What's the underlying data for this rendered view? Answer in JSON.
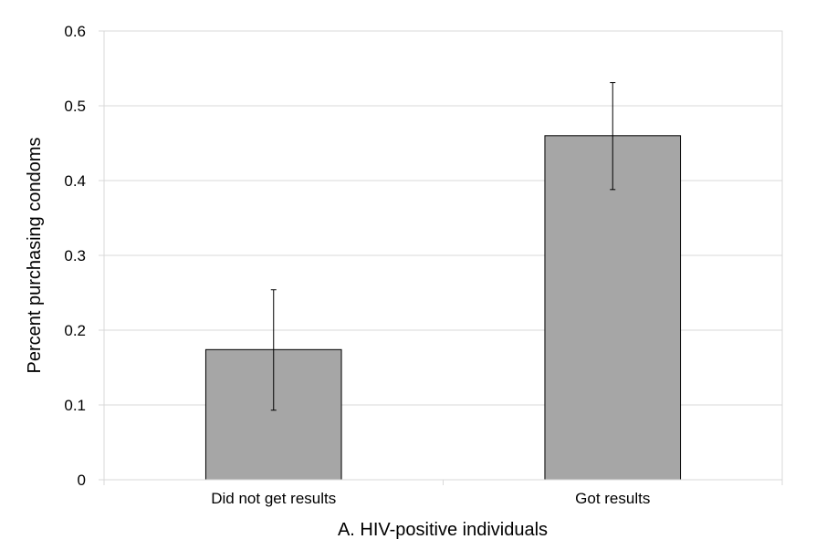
{
  "chart_data": {
    "type": "bar",
    "title": "",
    "xlabel": "A. HIV-positive individuals",
    "ylabel": "Percent purchasing condoms",
    "categories": [
      "Did not get results",
      "Got results"
    ],
    "values": [
      0.174,
      0.46
    ],
    "error_low": [
      0.093,
      0.388
    ],
    "error_high": [
      0.254,
      0.531
    ],
    "ylim": [
      0,
      0.6
    ],
    "yticks": [
      "0",
      "0.1",
      "0.2",
      "0.3",
      "0.4",
      "0.5",
      "0.6"
    ],
    "grid": true,
    "legend": "none",
    "bar_color": "#a6a6a6",
    "bar_edge_color": "#000000",
    "grid_color": "#d9d9d9"
  }
}
